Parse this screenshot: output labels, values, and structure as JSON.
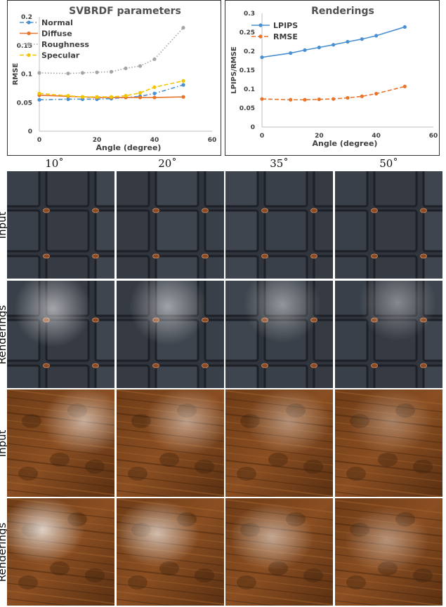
{
  "chart_data": [
    {
      "type": "line",
      "title": "SVBRDF parameters",
      "xlabel": "Angle (degree)",
      "ylabel": "RMSE",
      "xlim": [
        0,
        60
      ],
      "ylim": [
        0,
        0.2
      ],
      "xticks": [
        0,
        20,
        40,
        60
      ],
      "yticks": [
        0,
        0.05,
        0.1,
        0.15,
        0.2
      ],
      "ytick_labels": [
        "0",
        "0.05",
        "0.1",
        "0.15",
        "0.2"
      ],
      "legend": "top-left",
      "x": [
        0,
        10,
        15,
        20,
        25,
        30,
        35,
        40,
        50
      ],
      "series": [
        {
          "name": "Normal",
          "color": "#4a90d0",
          "dash": "dash-dot",
          "values": [
            0.055,
            0.056,
            0.056,
            0.056,
            0.057,
            0.059,
            0.061,
            0.066,
            0.081
          ]
        },
        {
          "name": "Diffuse",
          "color": "#e8742a",
          "dash": "solid",
          "values": [
            0.063,
            0.061,
            0.06,
            0.059,
            0.059,
            0.059,
            0.059,
            0.059,
            0.06
          ]
        },
        {
          "name": "Roughness",
          "color": "#a5a5a5",
          "dash": "dotted",
          "values": [
            0.102,
            0.101,
            0.102,
            0.103,
            0.104,
            0.11,
            0.114,
            0.126,
            0.181
          ]
        },
        {
          "name": "Specular",
          "color": "#f2c500",
          "dash": "dashed",
          "values": [
            0.066,
            0.062,
            0.06,
            0.06,
            0.06,
            0.062,
            0.067,
            0.077,
            0.088
          ]
        }
      ]
    },
    {
      "type": "line",
      "title": "Renderings",
      "xlabel": "Angle (degree)",
      "ylabel": "LPIPS/RMSE",
      "xlim": [
        0,
        60
      ],
      "ylim": [
        0,
        0.3
      ],
      "xticks": [
        0,
        20,
        40,
        60
      ],
      "yticks": [
        0,
        0.05,
        0.1,
        0.15,
        0.2,
        0.25,
        0.3
      ],
      "ytick_labels": [
        "0",
        "0.05",
        "0.1",
        "0.15",
        "0.2",
        "0.25",
        "0.3"
      ],
      "legend": "top-left",
      "x": [
        0,
        10,
        15,
        20,
        25,
        30,
        35,
        40,
        50
      ],
      "series": [
        {
          "name": "LPIPS",
          "color": "#4a90d0",
          "dash": "solid",
          "values": [
            0.184,
            0.195,
            0.203,
            0.21,
            0.217,
            0.225,
            0.232,
            0.241,
            0.264
          ]
        },
        {
          "name": "RMSE",
          "color": "#e8742a",
          "dash": "dashed",
          "values": [
            0.074,
            0.072,
            0.072,
            0.073,
            0.074,
            0.077,
            0.081,
            0.088,
            0.107
          ]
        }
      ]
    }
  ],
  "grid": {
    "columns": [
      "10˚",
      "20˚",
      "35˚",
      "50˚"
    ],
    "rows": [
      {
        "label": "Input",
        "material": "leather"
      },
      {
        "label": "Renderings",
        "material": "leather"
      },
      {
        "label": "Input",
        "material": "wood"
      },
      {
        "label": "Renderings",
        "material": "wood"
      }
    ]
  }
}
